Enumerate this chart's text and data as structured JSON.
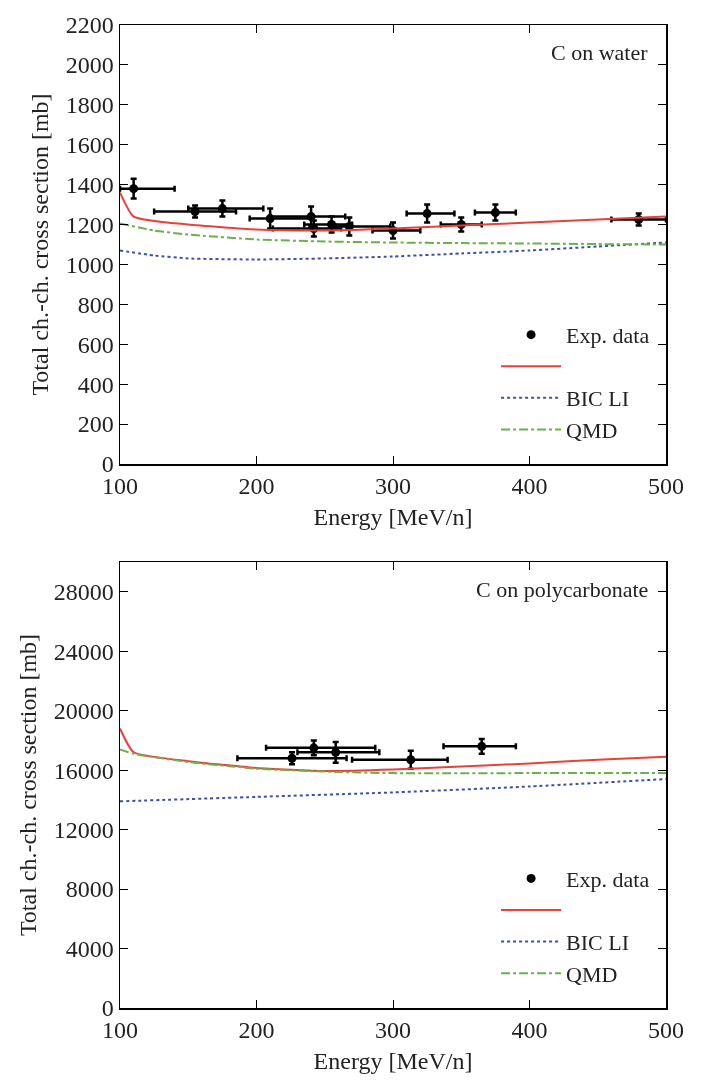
{
  "chart_data": [
    {
      "type": "line",
      "xlabel": "Energy [MeV/n]",
      "ylabel": "Total ch.-ch. cross section [mb]",
      "annotations": [
        "C on water"
      ],
      "xlim": [
        100,
        500
      ],
      "xticks": [
        100,
        200,
        300,
        400,
        500
      ],
      "ylim": [
        0,
        2200
      ],
      "yticks": [
        0,
        200,
        400,
        600,
        800,
        1000,
        1200,
        1400,
        1600,
        1800,
        2000,
        2200
      ],
      "grid": false,
      "legend": "bottom right",
      "series": [
        {
          "name": "Exp. data",
          "type": "scatter",
          "marker": "circle",
          "color": "#000000",
          "x": [
            110,
            155,
            175,
            210,
            240,
            242,
            255,
            268,
            300,
            325,
            350,
            375,
            480
          ],
          "values": [
            1380,
            1265,
            1280,
            1230,
            1240,
            1180,
            1200,
            1190,
            1170,
            1255,
            1200,
            1260,
            1225
          ],
          "errors": [
            50,
            30,
            40,
            50,
            50,
            40,
            40,
            45,
            40,
            45,
            35,
            40,
            30
          ],
          "xerrors": [
            [
              100,
              140
            ],
            [
              125,
              185
            ],
            [
              150,
              205
            ],
            [
              195,
              240
            ],
            [
              210,
              265
            ],
            [
              212,
              262
            ],
            [
              235,
              270
            ],
            [
              258,
              298
            ],
            [
              285,
              320
            ],
            [
              310,
              345
            ],
            [
              335,
              365
            ],
            [
              360,
              390
            ],
            [
              460,
              500
            ]
          ]
        },
        {
          "name": null,
          "line_style": "solid",
          "color": "#e8413c",
          "x": [
            100,
            110,
            150,
            200,
            250,
            300,
            350,
            400,
            450,
            500
          ],
          "values": [
            1360,
            1240,
            1200,
            1175,
            1170,
            1180,
            1195,
            1210,
            1225,
            1240
          ]
        },
        {
          "name": "BIC LI",
          "line_style": "dotted",
          "color": "#3a4fb0",
          "x": [
            100,
            125,
            150,
            200,
            250,
            300,
            350,
            400,
            450,
            500
          ],
          "values": [
            1070,
            1045,
            1030,
            1025,
            1030,
            1040,
            1055,
            1070,
            1090,
            1110
          ]
        },
        {
          "name": "QMD",
          "line_style": "dashed",
          "color": "#6ab04c",
          "x": [
            100,
            125,
            150,
            200,
            250,
            300,
            350,
            400,
            450,
            500
          ],
          "values": [
            1205,
            1170,
            1150,
            1125,
            1115,
            1110,
            1107,
            1105,
            1102,
            1100
          ]
        }
      ]
    },
    {
      "type": "line",
      "xlabel": "Energy [MeV/n]",
      "ylabel": "Total ch.-ch. cross section [mb]",
      "annotations": [
        "C on polycarbonate"
      ],
      "xlim": [
        100,
        500
      ],
      "xticks": [
        100,
        200,
        300,
        400,
        500
      ],
      "ylim": [
        0,
        30000
      ],
      "yticks": [
        0,
        4000,
        8000,
        12000,
        16000,
        20000,
        24000,
        28000
      ],
      "grid": false,
      "legend": "bottom right",
      "series": [
        {
          "name": "Exp. data",
          "type": "scatter",
          "marker": "circle",
          "color": "#000000",
          "x": [
            226,
            242,
            258,
            313,
            365
          ],
          "values": [
            16800,
            17500,
            17200,
            16700,
            17600
          ],
          "errors": [
            400,
            500,
            700,
            600,
            500
          ],
          "xerrors": [
            [
              186,
              266
            ],
            [
              207,
              287
            ],
            [
              230,
              290
            ],
            [
              270,
              340
            ],
            [
              337,
              390
            ]
          ]
        },
        {
          "name": null,
          "line_style": "solid",
          "color": "#e8413c",
          "x": [
            100,
            110,
            150,
            200,
            250,
            300,
            350,
            400,
            450,
            500
          ],
          "values": [
            18800,
            17200,
            16600,
            16150,
            15950,
            16050,
            16250,
            16450,
            16700,
            16900
          ]
        },
        {
          "name": "BIC LI",
          "line_style": "dotted",
          "color": "#3a4fb0",
          "x": [
            100,
            200,
            300,
            400,
            500
          ],
          "values": [
            13900,
            14200,
            14500,
            14900,
            15400
          ]
        },
        {
          "name": "QMD",
          "line_style": "dashed",
          "color": "#6ab04c",
          "x": [
            100,
            110,
            150,
            200,
            250,
            300,
            400,
            500
          ],
          "values": [
            17400,
            17100,
            16550,
            16100,
            15900,
            15800,
            15800,
            15800
          ]
        }
      ]
    }
  ]
}
